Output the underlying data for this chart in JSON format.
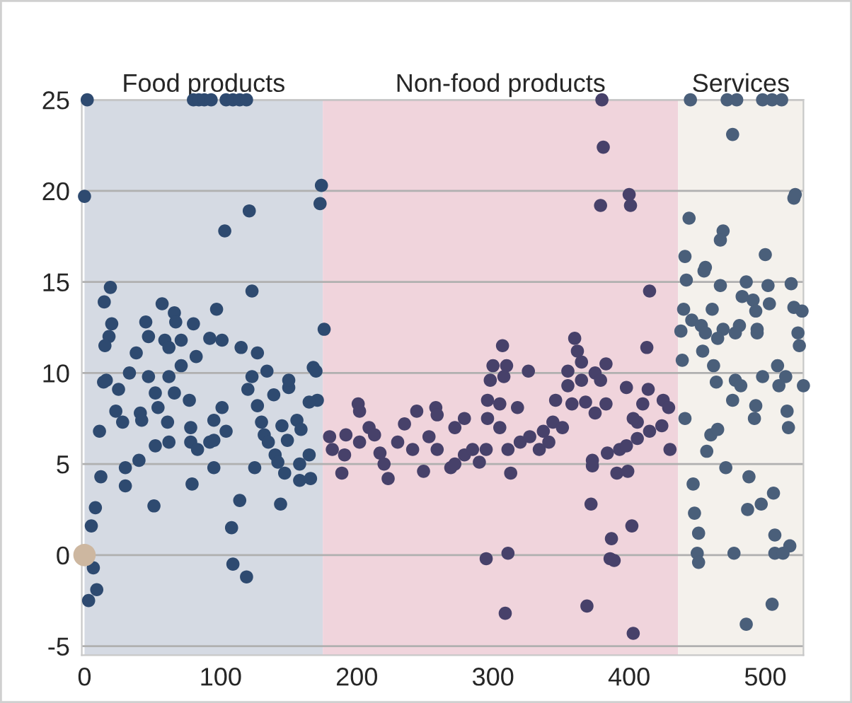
{
  "chart_data": {
    "type": "scatter",
    "marker": "circle",
    "grid": "y",
    "legend": false,
    "xlim": [
      -2,
      528
    ],
    "ylim": [
      -5.5,
      25
    ],
    "xticks": [
      0,
      100,
      200,
      300,
      400,
      500
    ],
    "yticks": [
      -5,
      0,
      5,
      10,
      15,
      20,
      25
    ],
    "bands": [
      {
        "axis": "x",
        "from": 0,
        "to": 175,
        "label": "Food products",
        "color": "#d5dae3"
      },
      {
        "axis": "x",
        "from": 175,
        "to": 436,
        "label": "Non-food products",
        "color": "#f0d4dc"
      },
      {
        "axis": "x",
        "from": 436,
        "to": 528,
        "label": "Services",
        "color": "#f4f1ec"
      }
    ],
    "series": [
      {
        "color": "#2e4a70",
        "x": [
          2,
          80,
          84,
          88,
          93,
          104,
          109,
          114,
          119,
          0,
          103,
          121,
          174,
          173,
          176,
          123,
          19,
          14.5,
          20,
          18,
          15,
          57,
          66,
          45,
          67,
          80,
          97,
          92,
          101,
          47,
          59,
          71,
          62,
          38,
          82,
          115,
          127,
          168,
          16,
          14,
          25,
          33,
          47,
          52,
          23,
          28,
          41,
          42,
          54,
          61,
          66,
          77,
          62,
          71,
          11,
          30,
          40,
          30,
          51,
          52,
          62,
          78,
          78,
          83,
          92,
          95,
          95,
          101,
          104,
          95,
          79,
          12,
          8,
          5,
          6.5,
          9,
          3,
          108,
          114,
          109,
          119,
          120,
          123,
          134,
          127,
          130,
          132,
          135,
          140,
          142,
          147,
          144,
          125,
          139,
          150,
          150,
          145,
          156,
          159,
          149,
          158,
          165,
          158,
          166,
          170,
          171,
          165
        ],
        "values": [
          25,
          25,
          25,
          25,
          25,
          25,
          25,
          25,
          25,
          19.7,
          17.8,
          18.9,
          20.3,
          19.3,
          12.4,
          14.5,
          14.7,
          13.9,
          12.7,
          12,
          11.5,
          13.8,
          13.3,
          12.8,
          12.8,
          12.7,
          13.5,
          11.9,
          11.8,
          12,
          11.8,
          11.8,
          11.4,
          11.1,
          10.9,
          11.4,
          11.1,
          10.3,
          9.6,
          9.5,
          9.1,
          10,
          9.8,
          8.9,
          7.9,
          7.3,
          7.8,
          7.4,
          8.1,
          7.3,
          8.9,
          8.5,
          9.8,
          10.4,
          6.8,
          4.8,
          5.2,
          3.8,
          2.7,
          6,
          6.2,
          7,
          6.2,
          5.8,
          6.2,
          6.3,
          7.4,
          8.1,
          6.8,
          4.8,
          3.9,
          4.3,
          2.6,
          1.6,
          -0.7,
          -1.9,
          -2.5,
          1.5,
          3,
          -0.5,
          -1.2,
          9.1,
          9.8,
          10.1,
          8.2,
          7.3,
          6.6,
          6.2,
          5.5,
          5.1,
          4.5,
          2.8,
          4.8,
          8.8,
          9.2,
          9.6,
          7.1,
          7.4,
          6.9,
          6.3,
          5,
          5.5,
          4.1,
          4.2,
          10.1,
          8.5,
          8.4
        ]
      },
      {
        "color": "#47416a",
        "x": [
          380,
          381,
          379,
          400,
          401,
          415,
          413,
          360,
          307,
          326,
          300,
          310,
          298,
          308,
          362,
          365,
          355,
          383,
          375,
          398,
          355,
          365,
          379,
          296,
          305,
          318,
          346,
          358,
          368,
          375,
          383,
          410,
          414,
          425,
          429,
          201,
          202,
          244,
          258,
          259,
          279,
          272,
          180,
          192,
          209,
          235,
          182,
          191,
          189,
          223,
          202,
          213,
          217,
          220,
          230,
          241,
          249,
          253,
          259,
          269,
          279,
          285,
          290,
          295,
          296,
          305,
          313,
          311,
          320,
          327,
          334,
          337,
          344,
          351,
          341,
          272,
          373,
          373,
          384,
          393,
          391,
          398,
          399,
          406,
          406,
          415,
          424,
          430,
          403,
          372,
          402,
          387,
          386,
          389,
          295,
          311,
          309,
          369,
          403
        ],
        "values": [
          25,
          22.4,
          19.2,
          19.8,
          19.2,
          14.5,
          11.4,
          11.9,
          11.5,
          10.1,
          10.4,
          10.4,
          9.6,
          9.8,
          11.2,
          10.6,
          10.1,
          10.5,
          10,
          9.2,
          9.3,
          9.6,
          9.6,
          8.5,
          8.3,
          8.1,
          8.5,
          8.3,
          8.4,
          7.8,
          8.3,
          8.3,
          9.1,
          8.5,
          8.1,
          8.3,
          7.9,
          7.9,
          8.1,
          7.7,
          7.5,
          7,
          6.5,
          6.6,
          7,
          7.2,
          5.8,
          5.5,
          4.5,
          4.2,
          6.2,
          6.6,
          5.6,
          5,
          6.2,
          5.8,
          4.6,
          6.5,
          5.8,
          4.8,
          5.5,
          5.8,
          5.1,
          5.8,
          7.5,
          7,
          4.5,
          5.8,
          6.2,
          6.5,
          5.8,
          6.8,
          7.3,
          7,
          6.2,
          5,
          5.2,
          4.9,
          5.6,
          5.8,
          4.5,
          6,
          4.6,
          6.4,
          7.3,
          6.8,
          7.1,
          5.8,
          7.5,
          2.8,
          1.6,
          0.9,
          -0.2,
          -0.3,
          -0.2,
          0.1,
          -3.2,
          -2.8,
          -4.3
        ]
      },
      {
        "color": "#4a5f7a",
        "x": [
          445,
          472,
          479,
          498,
          505,
          512,
          476,
          521,
          522,
          444,
          469,
          467,
          500,
          441,
          442,
          455,
          456,
          467,
          486,
          502,
          519,
          440,
          461,
          483,
          491,
          503,
          493,
          521,
          527,
          446,
          453,
          438,
          456,
          469,
          465,
          481,
          478,
          494,
          494,
          524,
          525,
          454,
          439,
          462,
          464,
          509,
          515,
          498,
          478,
          482,
          510,
          528,
          476,
          493,
          492,
          516,
          517,
          441,
          460,
          465,
          457,
          471,
          488,
          447,
          506,
          497,
          487,
          448,
          451,
          507,
          518,
          450,
          451,
          477,
          507,
          513,
          505,
          486
        ],
        "values": [
          25,
          25,
          25,
          25,
          25,
          25,
          23.1,
          19.6,
          19.8,
          18.5,
          17.8,
          17.3,
          16.5,
          16.4,
          15.1,
          15.6,
          15.8,
          14.8,
          15,
          14.8,
          14.9,
          13.5,
          13.5,
          14.2,
          14,
          13.8,
          13.4,
          13.6,
          13.4,
          12.9,
          12.6,
          12.3,
          12.2,
          12.4,
          11.9,
          12.6,
          12.2,
          12.4,
          12.2,
          12.2,
          11.5,
          11.2,
          10.7,
          10.4,
          9.5,
          10.4,
          9.8,
          9.8,
          9.6,
          9.3,
          9.3,
          9.3,
          8.5,
          8.2,
          7.5,
          7.9,
          7,
          7.5,
          6.6,
          6.9,
          5.7,
          4.8,
          4.3,
          3.9,
          3.4,
          2.8,
          2.5,
          2.3,
          1.2,
          1.1,
          0.5,
          0.1,
          -0.4,
          0.1,
          0.1,
          0.1,
          -2.7,
          -3.8
        ]
      },
      {
        "color": "#cdb7a0",
        "x": [
          0
        ],
        "values": [
          0
        ]
      }
    ]
  }
}
